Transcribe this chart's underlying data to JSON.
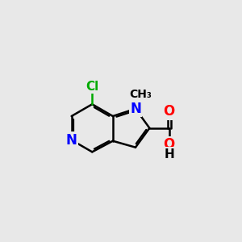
{
  "background_color": "#e8e8e8",
  "bond_color": "#000000",
  "bond_width": 1.8,
  "atom_colors": {
    "N": "#0000ff",
    "O": "#ff0000",
    "Cl": "#00aa00",
    "C": "#000000",
    "H": "#000000"
  },
  "font_size_atom": 11,
  "font_size_small": 9,
  "bl": 1.28
}
